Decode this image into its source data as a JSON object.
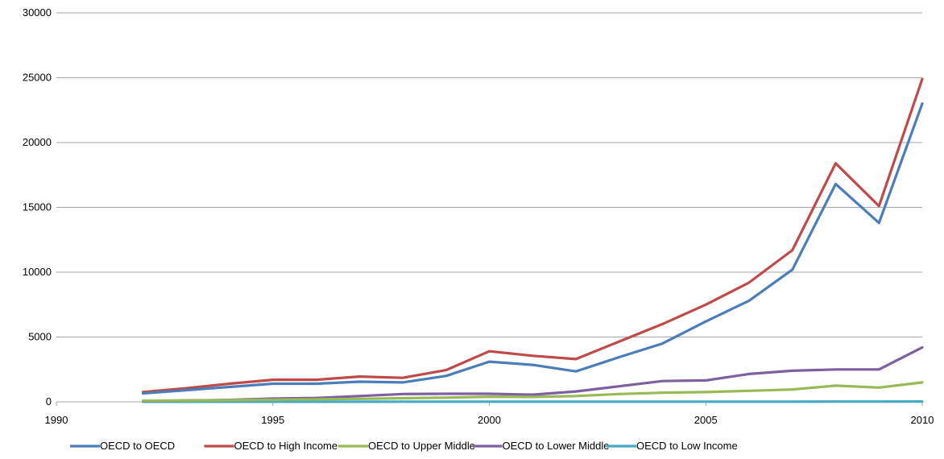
{
  "chart_data": {
    "type": "line",
    "title": "",
    "xlabel": "",
    "ylabel": "",
    "xlim": [
      1990,
      2010
    ],
    "ylim": [
      0,
      30000
    ],
    "x_ticks": [
      "1990",
      "1995",
      "2000",
      "2005",
      "2010"
    ],
    "y_ticks": [
      "0",
      "5000",
      "10000",
      "15000",
      "20000",
      "25000",
      "30000"
    ],
    "grid": "horizontal",
    "legend_position": "bottom",
    "x": [
      1992,
      1993,
      1994,
      1995,
      1996,
      1997,
      1998,
      1999,
      2000,
      2001,
      2002,
      2003,
      2004,
      2005,
      2006,
      2007,
      2008,
      2009,
      2010
    ],
    "series": [
      {
        "name": "OECD to OECD",
        "color": "#4a7ebb",
        "values": [
          650,
          900,
          1150,
          1400,
          1400,
          1550,
          1500,
          2000,
          3100,
          2850,
          2350,
          3450,
          4500,
          6200,
          7800,
          10200,
          16800,
          13800,
          23000
        ]
      },
      {
        "name": "OECD to High Income",
        "color": "#be4b48",
        "values": [
          750,
          1050,
          1400,
          1700,
          1700,
          1950,
          1850,
          2450,
          3900,
          3550,
          3300,
          4650,
          6000,
          7500,
          9200,
          11700,
          18400,
          15100,
          24900
        ]
      },
      {
        "name": "OECD to Upper Middle",
        "color": "#98b954",
        "values": [
          80,
          100,
          130,
          160,
          190,
          230,
          280,
          320,
          400,
          380,
          450,
          600,
          700,
          750,
          850,
          950,
          1250,
          1100,
          1500
        ]
      },
      {
        "name": "OECD to Lower Middle",
        "color": "#7d60a0",
        "values": [
          60,
          100,
          150,
          250,
          300,
          450,
          600,
          620,
          620,
          550,
          800,
          1200,
          1600,
          1650,
          2150,
          2400,
          2500,
          2500,
          4200
        ]
      },
      {
        "name": "OECD to Low Income",
        "color": "#46aac5",
        "values": [
          5,
          5,
          5,
          5,
          5,
          5,
          10,
          10,
          10,
          10,
          10,
          10,
          15,
          15,
          15,
          15,
          20,
          20,
          25
        ]
      }
    ]
  }
}
